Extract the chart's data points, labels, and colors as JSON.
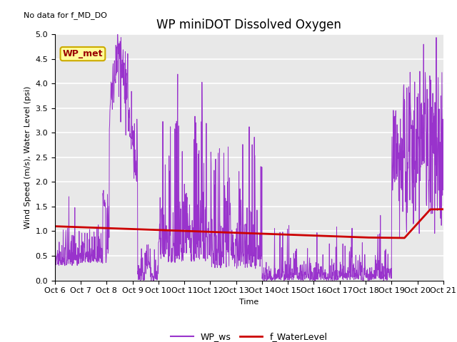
{
  "title": "WP miniDOT Dissolved Oxygen",
  "top_left_text": "No data for f_MD_DO",
  "ylabel": "Wind Speed (m/s), Water Level (psi)",
  "xlabel": "Time",
  "ylim": [
    0.0,
    5.0
  ],
  "yticks": [
    0.0,
    0.5,
    1.0,
    1.5,
    2.0,
    2.5,
    3.0,
    3.5,
    4.0,
    4.5,
    5.0
  ],
  "x_tick_labels": [
    "Oct 6",
    "Oct 7",
    "Oct 8",
    "Oct 9",
    "Oct 10",
    "Oct 11",
    "Oct 12",
    "Oct 13",
    "Oct 14",
    "Oct 15",
    "Oct 16",
    "Oct 17",
    "Oct 18",
    "Oct 19",
    "Oct 20",
    "Oct 21"
  ],
  "legend_entries": [
    "WP_ws",
    "f_WaterLevel"
  ],
  "legend_colors": [
    "#9933CC",
    "#CC0000"
  ],
  "box_label": "WP_met",
  "box_facecolor": "#FFFF99",
  "box_edgecolor": "#CCAA00",
  "box_textcolor": "#990000",
  "wp_ws_color": "#9933CC",
  "f_waterlevel_color": "#CC0000",
  "background_color": "#E8E8E8",
  "title_fontsize": 12,
  "label_fontsize": 8,
  "tick_fontsize": 8
}
